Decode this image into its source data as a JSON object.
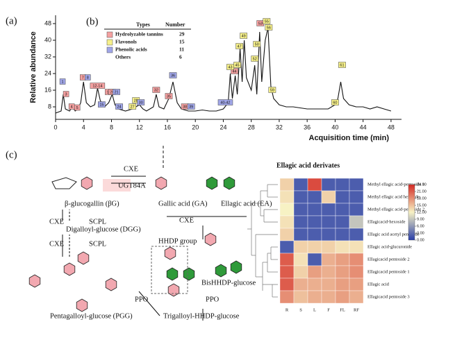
{
  "panel_labels": [
    "(a)",
    "(b)",
    "(c)"
  ],
  "chart_data": [
    {
      "type": "line",
      "ylabel": "Relative abundance",
      "xlabel": "Acquisition time  (min)",
      "xlim": [
        0,
        49.5
      ],
      "ylim": [
        2,
        52
      ],
      "xticks": [
        0,
        4,
        8,
        12,
        16,
        20,
        24,
        28,
        32,
        36,
        40,
        44,
        48
      ],
      "yticks": [
        8,
        16,
        24,
        32,
        40,
        48
      ],
      "series": [
        {
          "color": "#111111",
          "x": [
            0,
            0.8,
            1.1,
            1.4,
            2,
            2.4,
            2.8,
            3.2,
            3.6,
            4,
            4.4,
            5,
            5.6,
            6,
            6.4,
            7,
            7.6,
            8.1,
            8.5,
            9,
            10,
            11,
            12,
            12.5,
            13,
            14,
            14.4,
            14.8,
            15.5,
            16.2,
            16.8,
            17.4,
            18,
            19,
            20,
            21,
            22,
            23,
            24,
            24.7,
            25,
            25.3,
            25.7,
            26,
            26.4,
            26.7,
            27,
            27.3,
            28,
            28.5,
            28.8,
            29.2,
            29.5,
            30,
            30.4,
            30.8,
            31.2,
            32,
            33,
            34,
            35,
            36,
            37,
            38,
            39,
            40,
            40.4,
            40.8,
            41.2,
            42,
            43,
            44,
            45,
            46,
            47,
            48
          ],
          "values": [
            5,
            6,
            14,
            7,
            6,
            8,
            6,
            7,
            10,
            20,
            10,
            8,
            9,
            17,
            11,
            8,
            10,
            14,
            9,
            7,
            6,
            7,
            9,
            7,
            6,
            8,
            14,
            8,
            7,
            12,
            20,
            10,
            7,
            6,
            6,
            6.5,
            6,
            6,
            7,
            10,
            24,
            12,
            23,
            14,
            36,
            20,
            40,
            22,
            16,
            28,
            14,
            44,
            20,
            40,
            46,
            18,
            12,
            9,
            8,
            8,
            7.5,
            7,
            7,
            7,
            7,
            9,
            12,
            20,
            12,
            9,
            8,
            8,
            7,
            8,
            7,
            6
          ]
        }
      ],
      "peak_labels": [
        {
          "color": "#f4a0a0",
          "items": [
            {
              "x": 1.5,
              "y": 14,
              "label": "3"
            },
            {
              "x": 2.3,
              "y": 8,
              "label": "4"
            },
            {
              "x": 3.1,
              "y": 7.5,
              "label": "5"
            },
            {
              "x": 3.9,
              "y": 22,
              "label": "7"
            },
            {
              "x": 6,
              "y": 18,
              "label": "12-14"
            },
            {
              "x": 7.6,
              "y": 15,
              "label": "19"
            },
            {
              "x": 8.1,
              "y": 15,
              "label": "20"
            },
            {
              "x": 14.4,
              "y": 16,
              "label": "32"
            },
            {
              "x": 16.2,
              "y": 13,
              "label": "35"
            },
            {
              "x": 18.5,
              "y": 8,
              "label": "38"
            },
            {
              "x": 25.6,
              "y": 25,
              "label": "44"
            },
            {
              "x": 29.3,
              "y": 48,
              "label": "53"
            }
          ]
        },
        {
          "color": "#f6f08a",
          "items": [
            {
              "x": 11,
              "y": 8,
              "label": "27"
            },
            {
              "x": 11.5,
              "y": 11,
              "label": "28"
            },
            {
              "x": 25,
              "y": 27,
              "label": "43"
            },
            {
              "x": 26,
              "y": 28,
              "label": "45"
            },
            {
              "x": 26.3,
              "y": 37,
              "label": "47"
            },
            {
              "x": 26.9,
              "y": 42,
              "label": "49"
            },
            {
              "x": 28.5,
              "y": 31,
              "label": "52"
            },
            {
              "x": 28.8,
              "y": 38,
              "label": "50"
            },
            {
              "x": 30.2,
              "y": 49,
              "label": "55"
            },
            {
              "x": 30.5,
              "y": 46,
              "label": "56"
            },
            {
              "x": 31,
              "y": 16,
              "label": "59"
            },
            {
              "x": 40,
              "y": 10,
              "label": "60"
            },
            {
              "x": 41,
              "y": 28,
              "label": "61"
            }
          ]
        },
        {
          "color": "#a0a6e8",
          "items": [
            {
              "x": 1,
              "y": 20,
              "label": "1"
            },
            {
              "x": 4.6,
              "y": 22,
              "label": "8"
            },
            {
              "x": 6.6,
              "y": 9,
              "label": "15"
            },
            {
              "x": 8.7,
              "y": 15,
              "label": "21"
            },
            {
              "x": 9.1,
              "y": 8,
              "label": "24"
            },
            {
              "x": 12.2,
              "y": 10,
              "label": "30"
            },
            {
              "x": 16.8,
              "y": 23,
              "label": "36"
            },
            {
              "x": 19.4,
              "y": 8,
              "label": "39"
            },
            {
              "x": 24.3,
              "y": 10,
              "label": "40-42"
            }
          ]
        }
      ]
    },
    {
      "type": "heatmap",
      "title": "Ellagic acid derivates",
      "columns": [
        "R",
        "S",
        "L",
        "F",
        "FL",
        "RF"
      ],
      "rows": [
        "Methyl ellagic acid-pentoside 1",
        "Methyl ellagic acid hexoside",
        "Methyl ellagic acid-pentoside 2",
        "Ellagicacid-hexoside",
        "Ellagic acid acetyl pentoside",
        "Ellagic acid-glucuronide",
        "Ellagicacid pentoside  2",
        "Ellagicacid pentoside  1",
        "Ellagic acid",
        "Ellagicacid pentoside  3"
      ],
      "values": [
        [
          14,
          2,
          22,
          2,
          2,
          2
        ],
        [
          13,
          2,
          2,
          14,
          2,
          2
        ],
        [
          12,
          2,
          2,
          2,
          2,
          2
        ],
        [
          13,
          2,
          2,
          2,
          2,
          9
        ],
        [
          14,
          2,
          2,
          2,
          2,
          2
        ],
        [
          2,
          14,
          14,
          14,
          13,
          13
        ],
        [
          21,
          13,
          2,
          16,
          17,
          18
        ],
        [
          21,
          14,
          17,
          16,
          17,
          18
        ],
        [
          21,
          16,
          16,
          16,
          17,
          17
        ],
        [
          18,
          15,
          16,
          16,
          17,
          16
        ]
      ],
      "colors": [
        "#2a3fa8",
        "#f7f2c4",
        "#d42a24"
      ],
      "clim": [
        0,
        24
      ],
      "cticks": [
        {
          "value": 0,
          "label": "0.00"
        },
        {
          "value": 3,
          "label": "3.00"
        },
        {
          "value": 6,
          "label": "6.00"
        },
        {
          "value": 9,
          "label": "9.00"
        },
        {
          "value": 12,
          "label": "12.00"
        },
        {
          "value": 15,
          "label": "15.00"
        },
        {
          "value": 18,
          "label": "18.00"
        },
        {
          "value": 21,
          "label": "21.00"
        },
        {
          "value": 24,
          "label": "24.00"
        }
      ]
    }
  ],
  "table": {
    "header": [
      "Types",
      "Number"
    ],
    "rows": [
      {
        "type": "Hydrolyzable tannins",
        "number": 29,
        "color": "#f4a0a0"
      },
      {
        "type": "Flavonols",
        "number": 15,
        "color": "#f6f08a"
      },
      {
        "type": "Phenolic acids",
        "number": 11,
        "color": "#a0a6e8"
      },
      {
        "type": "Others",
        "number": 6
      }
    ]
  },
  "diagram": {
    "labels": [
      "CXE",
      "UGT84A",
      "β-glucogallin (βG)",
      "Gallic acid (GA)",
      "Ellagic acid (EA)",
      "CXE",
      "SCPL",
      "Digalloyl-glucose (DGG)",
      "CXE",
      "SCPL",
      "CXE",
      "HHDP group",
      "BisHHDP-glucose",
      "Pentagalloyl-glucose (PGG)",
      "PPO",
      "PPO",
      "Trigalloyl-HHDP-glucose"
    ]
  }
}
